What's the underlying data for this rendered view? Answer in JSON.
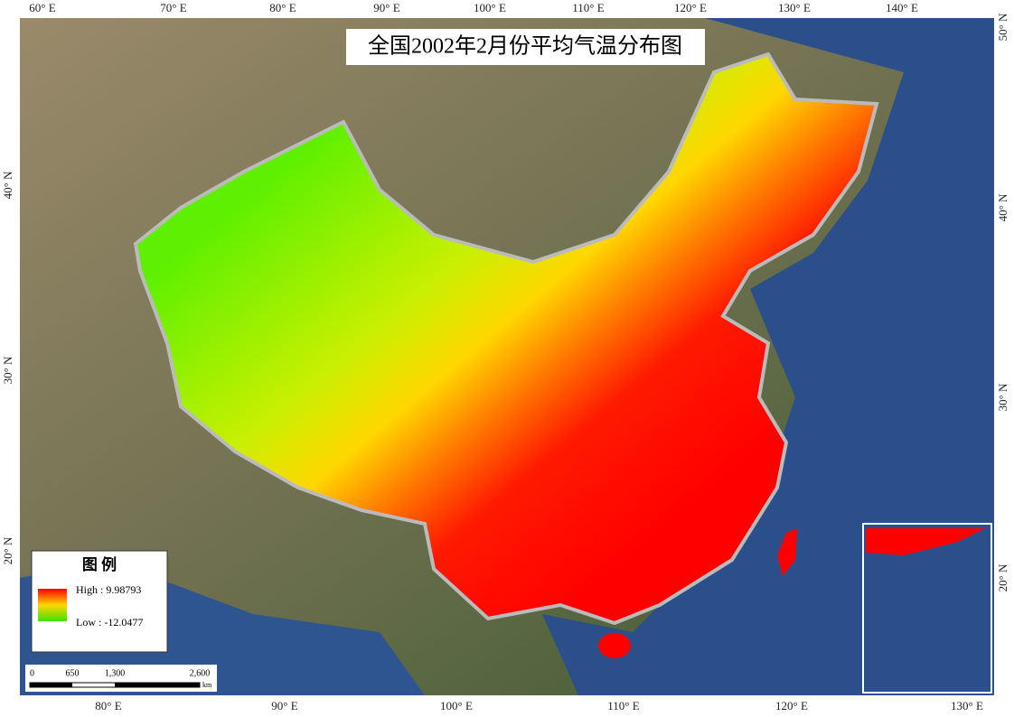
{
  "title": "全国2002年2月份平均气温分布图",
  "graticule": {
    "top": [
      "60° E",
      "70° E",
      "80° E",
      "90° E",
      "100° E",
      "110° E",
      "120° E",
      "130° E",
      "140° E"
    ],
    "bottom": [
      "80° E",
      "90° E",
      "100° E",
      "110° E",
      "120° E",
      "130° E"
    ],
    "left": [
      "40° N",
      "30° N",
      "20° N"
    ],
    "right": [
      "50° N",
      "40° N",
      "30° N",
      "20° N"
    ]
  },
  "legend": {
    "title": "图 例",
    "high": "High : 9.98793",
    "low": "Low : -12.0477"
  },
  "scale_bar": {
    "ticks": [
      "0",
      "650",
      "1,300",
      "2,600"
    ],
    "unit": "km"
  }
}
